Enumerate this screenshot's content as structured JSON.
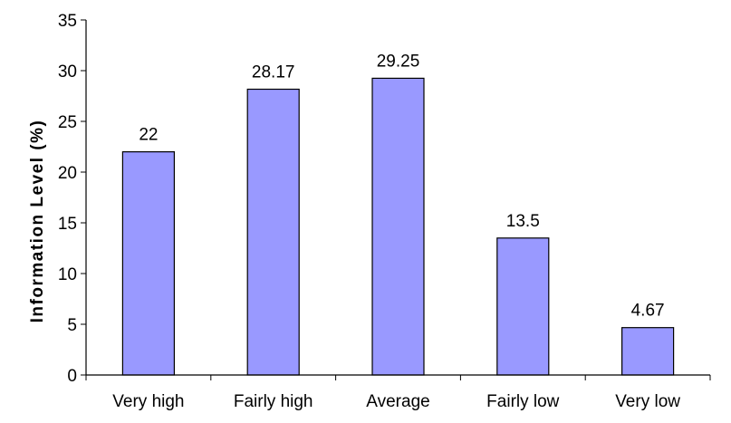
{
  "chart_data": {
    "type": "bar",
    "title": "",
    "xlabel": "",
    "ylabel": "Information Level (%)",
    "categories": [
      "Very high",
      "Fairly high",
      "Average",
      "Fairly low",
      "Very low"
    ],
    "values": [
      22,
      28.17,
      29.25,
      13.5,
      4.67
    ],
    "value_labels": [
      "22",
      "28.17",
      "29.25",
      "13.5",
      "4.67"
    ],
    "ylim": [
      0,
      35
    ],
    "yticks": [
      0,
      5,
      10,
      15,
      20,
      25,
      30,
      35
    ],
    "grid": false,
    "legend": "none",
    "colors": {
      "bar_fill": "#9999ff",
      "bar_stroke": "#000000",
      "axis": "#000000"
    }
  }
}
